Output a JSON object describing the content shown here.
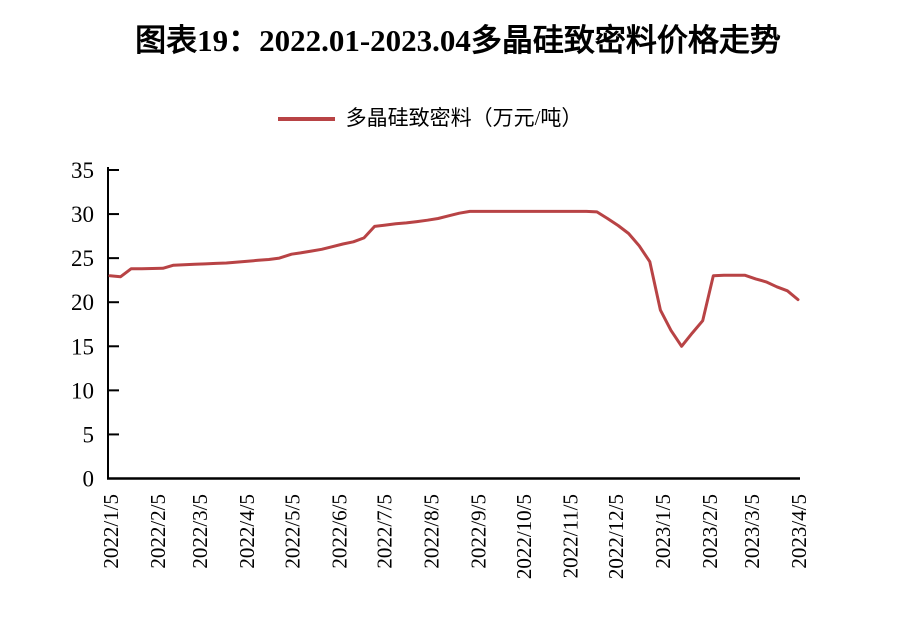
{
  "title": {
    "text": "图表19：2022.01-2023.04多晶硅致密料价格走势"
  },
  "legend": {
    "label": "多晶硅致密料（万元/吨）",
    "series_color": "#b84345"
  },
  "axis_color": "#000000",
  "chart_data": {
    "type": "line",
    "title": "图表19：2022.01-2023.04多晶硅致密料价格走势",
    "xlabel": "",
    "ylabel": "",
    "ylim": [
      0,
      35
    ],
    "y_ticks": [
      0,
      5,
      10,
      15,
      20,
      25,
      30,
      35
    ],
    "grid": false,
    "legend_position": "top",
    "x_tick_rotation": 90,
    "x_tick_labels": [
      "2022/1/5",
      "2022/2/5",
      "2022/3/5",
      "2022/4/5",
      "2022/5/5",
      "2022/6/5",
      "2022/7/5",
      "2022/8/5",
      "2022/9/5",
      "2022/10/5",
      "2022/11/5",
      "2022/12/5",
      "2023/1/5",
      "2023/2/5",
      "2023/3/5",
      "2023/4/5"
    ],
    "series": [
      {
        "name": "多晶硅致密料（万元/吨）",
        "color": "#b84345",
        "points": [
          [
            "2022/1/5",
            23.0
          ],
          [
            "2022/1/12",
            22.9
          ],
          [
            "2022/1/19",
            23.8
          ],
          [
            "2022/1/26",
            23.8
          ],
          [
            "2022/2/9",
            23.85
          ],
          [
            "2022/2/16",
            24.2
          ],
          [
            "2022/2/23",
            24.25
          ],
          [
            "2022/3/2",
            24.3
          ],
          [
            "2022/3/9",
            24.35
          ],
          [
            "2022/3/16",
            24.4
          ],
          [
            "2022/3/23",
            24.45
          ],
          [
            "2022/3/30",
            24.55
          ],
          [
            "2022/4/6",
            24.65
          ],
          [
            "2022/4/13",
            24.75
          ],
          [
            "2022/4/20",
            24.85
          ],
          [
            "2022/4/27",
            25.0
          ],
          [
            "2022/5/5",
            25.45
          ],
          [
            "2022/5/11",
            25.6
          ],
          [
            "2022/5/18",
            25.8
          ],
          [
            "2022/5/25",
            26.0
          ],
          [
            "2022/6/1",
            26.3
          ],
          [
            "2022/6/8",
            26.6
          ],
          [
            "2022/6/15",
            26.85
          ],
          [
            "2022/6/22",
            27.3
          ],
          [
            "2022/6/29",
            28.6
          ],
          [
            "2022/7/6",
            28.75
          ],
          [
            "2022/7/13",
            28.9
          ],
          [
            "2022/7/20",
            29.0
          ],
          [
            "2022/7/27",
            29.15
          ],
          [
            "2022/8/3",
            29.3
          ],
          [
            "2022/8/10",
            29.5
          ],
          [
            "2022/8/17",
            29.8
          ],
          [
            "2022/8/24",
            30.1
          ],
          [
            "2022/8/31",
            30.3
          ],
          [
            "2022/9/7",
            30.3
          ],
          [
            "2022/9/14",
            30.3
          ],
          [
            "2022/9/21",
            30.3
          ],
          [
            "2022/9/28",
            30.3
          ],
          [
            "2022/10/12",
            30.3
          ],
          [
            "2022/10/19",
            30.3
          ],
          [
            "2022/10/26",
            30.3
          ],
          [
            "2022/11/2",
            30.3
          ],
          [
            "2022/11/9",
            30.3
          ],
          [
            "2022/11/16",
            30.3
          ],
          [
            "2022/11/23",
            30.25
          ],
          [
            "2022/11/30",
            29.5
          ],
          [
            "2022/12/7",
            28.7
          ],
          [
            "2022/12/14",
            27.8
          ],
          [
            "2022/12/21",
            26.4
          ],
          [
            "2022/12/28",
            24.6
          ],
          [
            "2023/1/4",
            19.1
          ],
          [
            "2023/1/11",
            16.8
          ],
          [
            "2023/1/18",
            15.0
          ],
          [
            "2023/1/25",
            16.5
          ],
          [
            "2023/2/1",
            17.9
          ],
          [
            "2023/2/8",
            23.0
          ],
          [
            "2023/2/15",
            23.05
          ],
          [
            "2023/2/22",
            23.05
          ],
          [
            "2023/3/1",
            23.05
          ],
          [
            "2023/3/8",
            22.65
          ],
          [
            "2023/3/15",
            22.3
          ],
          [
            "2023/3/22",
            21.75
          ],
          [
            "2023/3/29",
            21.3
          ],
          [
            "2023/4/5",
            20.3
          ]
        ]
      }
    ]
  }
}
